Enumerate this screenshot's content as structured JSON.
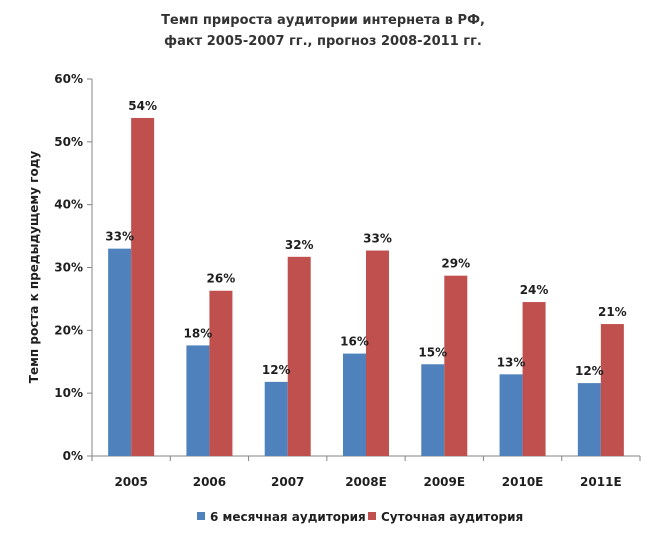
{
  "chart_data": {
    "type": "bar",
    "title_line1": "Темп прироста аудитории интернета в РФ,",
    "title_line2": "факт 2005-2007 гг., прогноз 2008-2011 гг.",
    "ylabel": "Темп роста к предыдущему году",
    "xlabel": "",
    "ylim": [
      0,
      60
    ],
    "yticks": [
      0,
      10,
      20,
      30,
      40,
      50,
      60
    ],
    "ytick_labels": [
      "0%",
      "10%",
      "20%",
      "30%",
      "40%",
      "50%",
      "60%"
    ],
    "categories": [
      "2005",
      "2006",
      "2007",
      "2008E",
      "2009E",
      "2010E",
      "2011E"
    ],
    "grid": false,
    "legend_position": "bottom",
    "series": [
      {
        "name": "6 месячная аудитория",
        "color": "#4f81bd",
        "values": [
          33,
          17.6,
          11.8,
          16.3,
          14.6,
          13.0,
          11.6
        ],
        "labels": [
          "33%",
          "18%",
          "12%",
          "16%",
          "15%",
          "13%",
          "12%"
        ]
      },
      {
        "name": "Суточная аудитория",
        "color": "#c0504d",
        "values": [
          53.8,
          26.3,
          31.7,
          32.7,
          28.7,
          24.5,
          21.0
        ],
        "labels": [
          "54%",
          "26%",
          "32%",
          "33%",
          "29%",
          "24%",
          "21%"
        ]
      }
    ]
  }
}
